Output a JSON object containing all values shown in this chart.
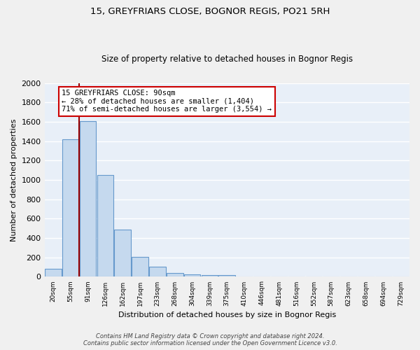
{
  "title": "15, GREYFRIARS CLOSE, BOGNOR REGIS, PO21 5RH",
  "subtitle": "Size of property relative to detached houses in Bognor Regis",
  "xlabel": "Distribution of detached houses by size in Bognor Regis",
  "ylabel": "Number of detached properties",
  "footer_line1": "Contains HM Land Registry data © Crown copyright and database right 2024.",
  "footer_line2": "Contains public sector information licensed under the Open Government Licence v3.0.",
  "bar_labels": [
    "20sqm",
    "55sqm",
    "91sqm",
    "126sqm",
    "162sqm",
    "197sqm",
    "233sqm",
    "268sqm",
    "304sqm",
    "339sqm",
    "375sqm",
    "410sqm",
    "446sqm",
    "481sqm",
    "516sqm",
    "552sqm",
    "587sqm",
    "623sqm",
    "658sqm",
    "694sqm",
    "729sqm"
  ],
  "bar_values": [
    85,
    1420,
    1610,
    1050,
    490,
    205,
    105,
    40,
    28,
    20,
    15,
    0,
    0,
    0,
    0,
    0,
    0,
    0,
    0,
    0,
    0
  ],
  "bar_color": "#c5d9ee",
  "bar_edge_color": "#6699cc",
  "background_color": "#e8eff8",
  "grid_color": "#ffffff",
  "redline_bin": 2,
  "annotation_title": "15 GREYFRIARS CLOSE: 90sqm",
  "annotation_line2": "← 28% of detached houses are smaller (1,404)",
  "annotation_line3": "71% of semi-detached houses are larger (3,554) →",
  "annotation_box_color": "#ffffff",
  "annotation_border_color": "#cc0000",
  "ymax": 2000,
  "yticks": [
    0,
    200,
    400,
    600,
    800,
    1000,
    1200,
    1400,
    1600,
    1800,
    2000
  ]
}
